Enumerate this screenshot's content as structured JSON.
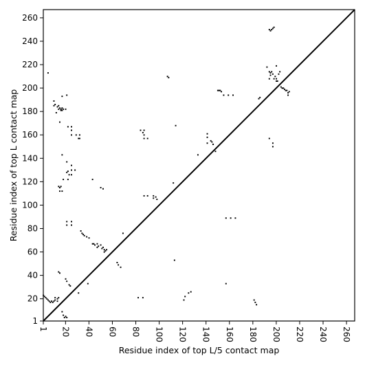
{
  "chart_data": {
    "type": "heatmap",
    "title": "",
    "xlabel": "Residue index of top L/5 contact map",
    "ylabel": "Residue index of top L contact map",
    "xlim": [
      1,
      267
    ],
    "ylim": [
      1,
      267
    ],
    "x_ticks": [
      1,
      20,
      40,
      60,
      80,
      100,
      120,
      140,
      160,
      180,
      200,
      220,
      240,
      260
    ],
    "x_tick_labels": [
      "1",
      "20",
      "40",
      "60",
      "80",
      "100",
      "120",
      "140",
      "160",
      "180",
      "200",
      "220",
      "240",
      "260"
    ],
    "y_ticks": [
      1,
      20,
      40,
      60,
      80,
      100,
      120,
      140,
      160,
      180,
      200,
      220,
      240,
      260
    ],
    "y_tick_labels": [
      "1",
      "20",
      "40",
      "60",
      "80",
      "100",
      "120",
      "140",
      "160",
      "180",
      "200",
      "220",
      "240",
      "260"
    ],
    "grid": false,
    "diagonal_line": true,
    "cell_color": "#000000",
    "upper_left_contacts": [
      [
        5,
        213
      ],
      [
        10,
        189
      ],
      [
        10,
        185
      ],
      [
        11,
        186
      ],
      [
        12,
        179
      ],
      [
        13,
        184
      ],
      [
        14,
        182
      ],
      [
        15,
        183
      ],
      [
        16,
        181
      ],
      [
        16,
        182
      ],
      [
        17,
        183
      ],
      [
        17,
        181
      ],
      [
        18,
        182
      ],
      [
        14,
        185
      ],
      [
        15,
        171
      ],
      [
        17,
        193
      ],
      [
        20,
        182
      ],
      [
        21,
        194
      ],
      [
        22,
        167
      ],
      [
        25,
        167
      ],
      [
        25,
        164
      ],
      [
        25,
        160
      ],
      [
        29,
        160
      ],
      [
        31,
        157
      ],
      [
        32,
        157
      ],
      [
        32,
        160
      ],
      [
        17,
        143
      ],
      [
        21,
        137
      ],
      [
        21,
        128
      ],
      [
        22,
        129
      ],
      [
        23,
        126
      ],
      [
        25,
        126
      ],
      [
        25,
        130
      ],
      [
        25,
        134
      ],
      [
        28,
        130
      ],
      [
        18,
        122
      ],
      [
        22,
        122
      ],
      [
        14,
        116
      ],
      [
        15,
        115
      ],
      [
        16,
        116
      ],
      [
        15,
        112
      ],
      [
        17,
        112
      ],
      [
        21,
        86
      ],
      [
        21,
        83
      ],
      [
        25,
        86
      ],
      [
        25,
        83
      ],
      [
        33,
        78
      ],
      [
        34,
        76
      ],
      [
        35,
        75
      ],
      [
        36,
        74
      ],
      [
        38,
        73
      ],
      [
        40,
        72
      ],
      [
        43,
        67
      ],
      [
        44,
        67
      ],
      [
        45,
        66
      ],
      [
        47,
        67
      ],
      [
        47,
        64
      ],
      [
        48,
        65
      ],
      [
        50,
        66
      ],
      [
        51,
        63
      ],
      [
        52,
        64
      ],
      [
        53,
        62
      ],
      [
        53,
        60
      ],
      [
        54,
        61
      ],
      [
        55,
        62
      ],
      [
        50,
        115
      ],
      [
        52,
        114
      ],
      [
        43,
        122
      ],
      [
        84,
        164
      ],
      [
        86,
        162
      ],
      [
        87,
        164
      ],
      [
        87,
        160
      ],
      [
        87,
        157
      ],
      [
        90,
        157
      ],
      [
        87,
        108
      ],
      [
        90,
        108
      ],
      [
        95,
        108
      ],
      [
        95,
        106
      ],
      [
        97,
        107
      ],
      [
        98,
        105
      ],
      [
        112,
        119
      ],
      [
        114,
        168
      ],
      [
        107,
        210
      ],
      [
        108,
        209
      ],
      [
        133,
        143
      ],
      [
        141,
        161
      ],
      [
        141,
        158
      ],
      [
        141,
        153
      ],
      [
        144,
        155
      ],
      [
        145,
        154
      ],
      [
        146,
        152
      ],
      [
        148,
        146
      ],
      [
        150,
        198
      ],
      [
        151,
        198
      ],
      [
        152,
        198
      ],
      [
        153,
        197
      ],
      [
        155,
        194
      ],
      [
        159,
        194
      ],
      [
        163,
        194
      ],
      [
        185,
        191
      ],
      [
        186,
        192
      ],
      [
        194,
        208
      ],
      [
        194,
        214
      ],
      [
        195,
        213
      ],
      [
        195,
        211
      ],
      [
        196,
        214
      ],
      [
        197,
        212
      ],
      [
        198,
        208
      ],
      [
        199,
        210
      ],
      [
        200,
        206
      ],
      [
        201,
        206
      ],
      [
        203,
        214
      ],
      [
        204,
        201
      ],
      [
        205,
        200
      ],
      [
        206,
        200
      ],
      [
        207,
        199
      ],
      [
        208,
        198
      ],
      [
        209,
        198
      ],
      [
        210,
        196
      ],
      [
        210,
        194
      ],
      [
        211,
        197
      ],
      [
        192,
        218
      ],
      [
        194,
        250
      ],
      [
        195,
        249
      ],
      [
        196,
        250
      ],
      [
        197,
        251
      ],
      [
        198,
        252
      ],
      [
        200,
        219
      ],
      [
        194,
        157
      ],
      [
        197,
        153
      ],
      [
        197,
        150
      ],
      [
        146,
        152
      ],
      [
        200,
        208
      ],
      [
        202,
        212
      ]
    ],
    "lower_right_contacts": [
      [
        1,
        23
      ],
      [
        2,
        22
      ],
      [
        3,
        21
      ],
      [
        4,
        20
      ],
      [
        5,
        19
      ],
      [
        6,
        18
      ],
      [
        7,
        17
      ],
      [
        8,
        18
      ],
      [
        9,
        17
      ],
      [
        10,
        18
      ],
      [
        11,
        19
      ],
      [
        11,
        21
      ],
      [
        13,
        18
      ],
      [
        13,
        20
      ],
      [
        14,
        21
      ],
      [
        14,
        43
      ],
      [
        15,
        42
      ],
      [
        17,
        9
      ],
      [
        18,
        6
      ],
      [
        19,
        4
      ],
      [
        20,
        5
      ],
      [
        21,
        4
      ],
      [
        20,
        37
      ],
      [
        21,
        35
      ],
      [
        23,
        32
      ],
      [
        24,
        31
      ],
      [
        31,
        25
      ],
      [
        39,
        33
      ],
      [
        64,
        51
      ],
      [
        65,
        49
      ],
      [
        67,
        47
      ],
      [
        69,
        76
      ],
      [
        82,
        21
      ],
      [
        86,
        21
      ],
      [
        113,
        53
      ],
      [
        121,
        19
      ],
      [
        122,
        22
      ],
      [
        125,
        25
      ],
      [
        127,
        26
      ],
      [
        157,
        89
      ],
      [
        161,
        89
      ],
      [
        165,
        89
      ],
      [
        157,
        33
      ],
      [
        181,
        19
      ],
      [
        182,
        17
      ],
      [
        183,
        15
      ]
    ]
  }
}
